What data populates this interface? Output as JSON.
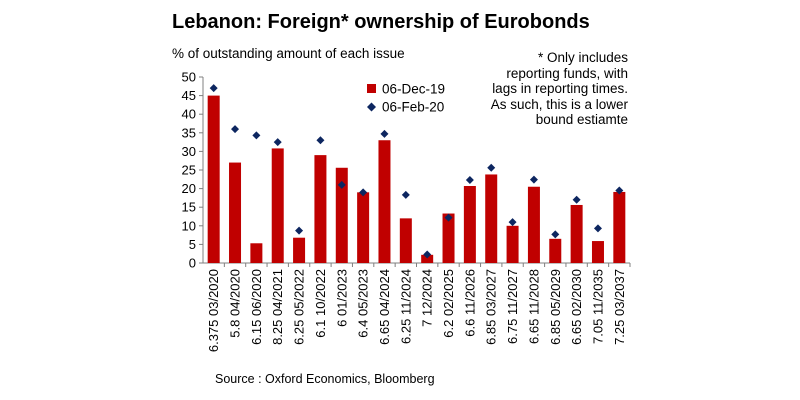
{
  "title": "Lebanon: Foreign* ownership of Eurobonds",
  "subtitle": "% of outstanding amount of each issue",
  "footnote_lines": [
    "* Only includes",
    "reporting funds, with",
    "lags in reporting times.",
    "As such, this is a lower",
    "bound estiamte"
  ],
  "source": "Source : Oxford Economics, Bloomberg",
  "colors": {
    "bar": "#c00000",
    "marker": "#0d2660",
    "axis": "#808080"
  },
  "chart_data": {
    "type": "bar",
    "title": "Lebanon: Foreign* ownership of Eurobonds",
    "ylabel": "% of outstanding amount of each issue",
    "ylim": [
      0,
      50
    ],
    "yticks": [
      0,
      5,
      10,
      15,
      20,
      25,
      30,
      35,
      40,
      45,
      50
    ],
    "grid": false,
    "legend_position": "top-center",
    "categories": [
      "6.375 03/2020",
      "5.8 04/2020",
      "6.15 06/2020",
      "8.25 04/2021",
      "6.25 05/2022",
      "6.1 10/2022",
      "6 01/2023",
      "6.4 05/2023",
      "6.65 04/2024",
      "6.25 11/2024",
      "7 12/2024",
      "6.2 02/2025",
      "6.6 11/2026",
      "6.85 03/2027",
      "6.75 11/2027",
      "6.65 11/2028",
      "6.85 05/2029",
      "6.65 02/2030",
      "7.05 11/2035",
      "7.25 03/2037"
    ],
    "series": [
      {
        "name": "06-Dec-19",
        "kind": "bar",
        "values": [
          45,
          27,
          5.3,
          30.8,
          6.8,
          29,
          25.6,
          19,
          33,
          12,
          2.2,
          13.3,
          20.7,
          23.8,
          10,
          20.5,
          6.5,
          15.6,
          5.9,
          19.1
        ]
      },
      {
        "name": "06-Feb-20",
        "kind": "marker",
        "values": [
          47,
          36,
          34.3,
          32.5,
          8.7,
          33,
          21,
          19,
          34.7,
          18.3,
          2.3,
          12.2,
          22.3,
          25.6,
          11,
          22.4,
          7.7,
          17,
          9.3,
          19.5
        ]
      }
    ]
  }
}
